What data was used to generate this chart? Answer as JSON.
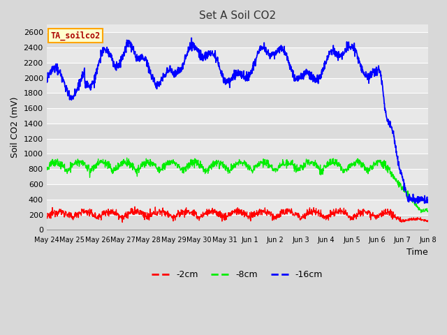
{
  "title": "Set A Soil CO2",
  "ylabel": "Soil CO2 (mV)",
  "xlabel": "Time",
  "legend_label": "TA_soilco2",
  "ylim": [
    0,
    2700
  ],
  "fig_bg_color": "#d8d8d8",
  "plot_bg_color": "#e8e8e8",
  "band_colors": [
    "#e0e0e0",
    "#d0d0d0"
  ],
  "line_colors": [
    "#ff0000",
    "#00ee00",
    "#0000ff"
  ],
  "line_labels": [
    "-2cm",
    "-8cm",
    "-16cm"
  ],
  "xtick_labels": [
    "May 24",
    "May 25",
    "May 26",
    "May 27",
    "May 28",
    "May 29",
    "May 30",
    "May 31",
    "Jun 1",
    "Jun 2",
    "Jun 3",
    "Jun 4",
    "Jun 5",
    "Jun 6",
    "Jun 7",
    "Jun 8"
  ],
  "ytick_values": [
    0,
    200,
    400,
    600,
    800,
    1000,
    1200,
    1400,
    1600,
    1800,
    2000,
    2200,
    2400,
    2600
  ],
  "grid_color": "#ffffff",
  "title_fontsize": 11,
  "axis_fontsize": 9,
  "tick_fontsize": 8
}
